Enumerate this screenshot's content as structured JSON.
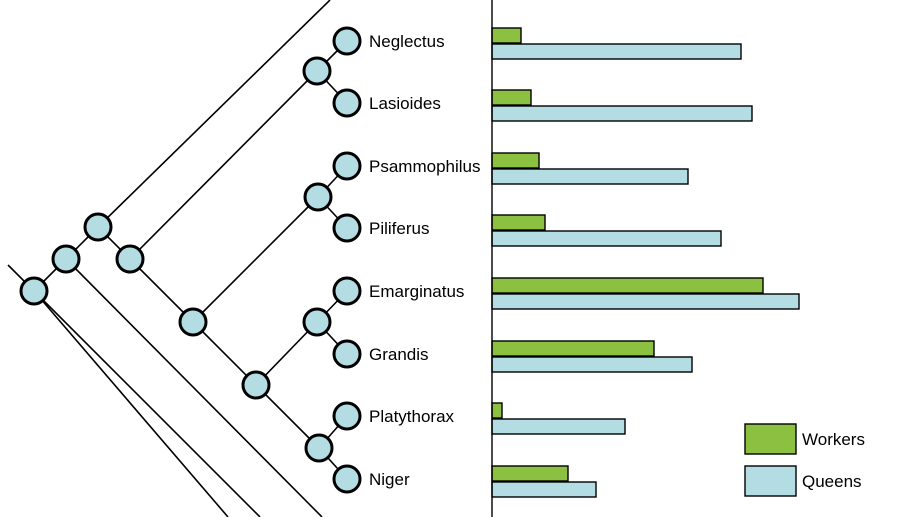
{
  "chart_data": {
    "type": "bar",
    "orientation": "horizontal",
    "categories": [
      "Neglectus",
      "Lasioides",
      "Psammophilus",
      "Piliferus",
      "Emarginatus",
      "Grandis",
      "Platythorax",
      "Niger"
    ],
    "series": [
      {
        "name": "Workers",
        "values": [
          29,
          39,
          47,
          53,
          271,
          162,
          10,
          76
        ],
        "color": "#8cc040"
      },
      {
        "name": "Queens",
        "values": [
          249,
          260,
          196,
          229,
          307,
          200,
          133,
          104
        ],
        "color": "#b3dde2"
      }
    ],
    "xlim": [
      0,
      430
    ],
    "legend_position": "bottom-right",
    "phylogeny": {
      "topology": "((Neglectus,Lasioides),((Psammophilus,Piliferus),((Emarginatus,Grandis),(Platythorax,Niger))))",
      "node_color": "#b3dde2"
    }
  }
}
